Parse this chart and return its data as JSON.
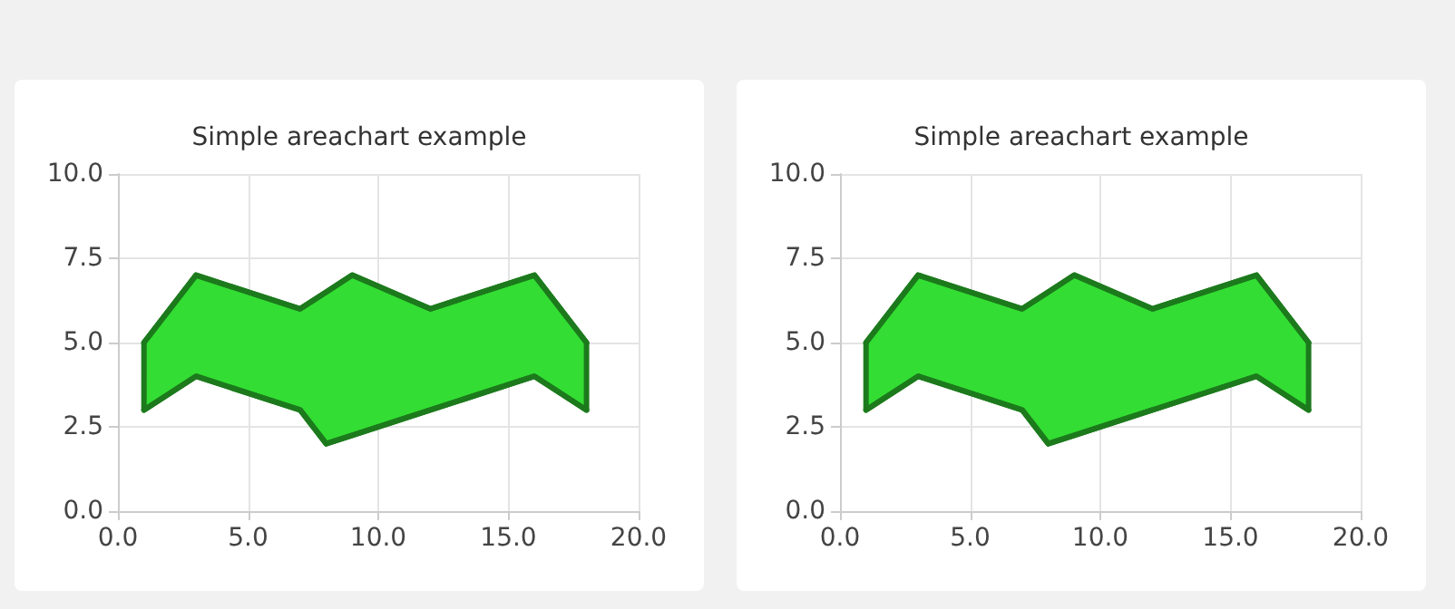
{
  "chart_data": [
    {
      "type": "area",
      "title": "Simple areachart example",
      "x": [
        1,
        3,
        7,
        8,
        9,
        12,
        16,
        18
      ],
      "series": [
        {
          "type": "area",
          "color": "#33dd33",
          "values": [
            5,
            7,
            6,
            6.5,
            7,
            6,
            7,
            5
          ]
        },
        {
          "type": "line",
          "color": "#1c7a1c",
          "values": [
            3,
            4,
            3,
            2,
            2.25,
            3,
            4,
            3
          ]
        }
      ],
      "xlim": [
        0,
        20
      ],
      "xticks": [
        {
          "value": 0,
          "label": "0.0"
        },
        {
          "value": 5,
          "label": "5.0"
        },
        {
          "value": 10,
          "label": "10.0"
        },
        {
          "value": 15,
          "label": "15.0"
        },
        {
          "value": 20,
          "label": "20.0"
        }
      ],
      "ylim": [
        0,
        10
      ],
      "yticks": [
        {
          "value": 0,
          "label": "0.0"
        },
        {
          "value": 2.5,
          "label": "2.5"
        },
        {
          "value": 5,
          "label": "5.0"
        },
        {
          "value": 7.5,
          "label": "7.5"
        },
        {
          "value": 10,
          "label": "10.0"
        }
      ],
      "grid": true,
      "legend": false
    },
    {
      "type": "area",
      "title": "Simple areachart example",
      "x": [
        1,
        3,
        7,
        8,
        9,
        12,
        16,
        18
      ],
      "series": [
        {
          "type": "area",
          "color": "#33dd33",
          "values": [
            5,
            7,
            6,
            6.5,
            7,
            6,
            7,
            5
          ]
        },
        {
          "type": "line",
          "color": "#1c7a1c",
          "values": [
            3,
            4,
            3,
            2,
            2.25,
            3,
            4,
            3
          ]
        }
      ],
      "xlim": [
        0,
        20
      ],
      "xticks": [
        {
          "value": 0,
          "label": "0.0"
        },
        {
          "value": 5,
          "label": "5.0"
        },
        {
          "value": 10,
          "label": "10.0"
        },
        {
          "value": 15,
          "label": "15.0"
        },
        {
          "value": 20,
          "label": "20.0"
        }
      ],
      "ylim": [
        0,
        10
      ],
      "yticks": [
        {
          "value": 0,
          "label": "0.0"
        },
        {
          "value": 2.5,
          "label": "2.5"
        },
        {
          "value": 5,
          "label": "5.0"
        },
        {
          "value": 7.5,
          "label": "7.5"
        },
        {
          "value": 10,
          "label": "10.0"
        }
      ],
      "grid": true,
      "legend": false
    }
  ]
}
